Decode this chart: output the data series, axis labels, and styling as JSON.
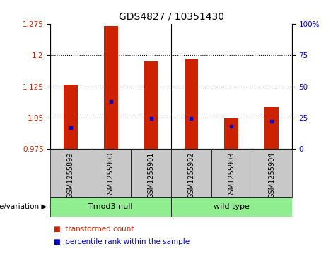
{
  "title": "GDS4827 / 10351430",
  "categories": [
    "GSM1255899",
    "GSM1255900",
    "GSM1255901",
    "GSM1255902",
    "GSM1255903",
    "GSM1255904"
  ],
  "transformed_counts": [
    1.13,
    1.27,
    1.185,
    1.19,
    1.048,
    1.075
  ],
  "percentile_values": [
    17,
    38,
    24,
    24,
    18,
    22
  ],
  "bar_color": "#cc2200",
  "percentile_color": "#0000cc",
  "ylim_left": [
    0.975,
    1.275
  ],
  "ylim_right": [
    0,
    100
  ],
  "yticks_left": [
    0.975,
    1.05,
    1.125,
    1.2,
    1.275
  ],
  "yticks_right": [
    0,
    25,
    50,
    75,
    100
  ],
  "ytick_labels_left": [
    "0.975",
    "1.05",
    "1.125",
    "1.2",
    "1.275"
  ],
  "ytick_labels_right": [
    "0",
    "25",
    "50",
    "75",
    "100%"
  ],
  "groups": [
    {
      "label": "Tmod3 null",
      "indices": [
        0,
        1,
        2
      ],
      "color": "#90ee90"
    },
    {
      "label": "wild type",
      "indices": [
        3,
        4,
        5
      ],
      "color": "#90ee90"
    }
  ],
  "group_label_prefix": "genotype/variation ▶",
  "legend_items": [
    {
      "label": "transformed count",
      "color": "#cc2200"
    },
    {
      "label": "percentile rank within the sample",
      "color": "#0000cc"
    }
  ],
  "background_color": "#ffffff",
  "plot_bg_color": "#ffffff",
  "label_bg_color": "#c8c8c8",
  "bar_width": 0.35,
  "base_value": 0.975
}
